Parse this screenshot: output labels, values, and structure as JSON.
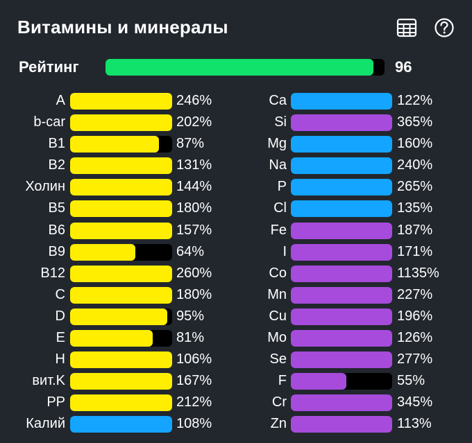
{
  "header": {
    "title": "Витамины и минералы",
    "icons": [
      "table-icon",
      "help-icon"
    ]
  },
  "rating": {
    "label": "Рейтинг",
    "value": "96",
    "percent": 96,
    "color": "#10e26b"
  },
  "colors": {
    "vitamin": "#ffee00",
    "mineral_blue": "#13a5ff",
    "mineral_purple": "#a64bdb",
    "track": "#000000",
    "background": "#22272e"
  },
  "vitamins": [
    {
      "name": "A",
      "pct": "246%",
      "value": 246,
      "color": "#ffee00"
    },
    {
      "name": "b-car",
      "pct": "202%",
      "value": 202,
      "color": "#ffee00"
    },
    {
      "name": "B1",
      "pct": "87%",
      "value": 87,
      "color": "#ffee00"
    },
    {
      "name": "B2",
      "pct": "131%",
      "value": 131,
      "color": "#ffee00"
    },
    {
      "name": "Холин",
      "pct": "144%",
      "value": 144,
      "color": "#ffee00"
    },
    {
      "name": "B5",
      "pct": "180%",
      "value": 180,
      "color": "#ffee00"
    },
    {
      "name": "B6",
      "pct": "157%",
      "value": 157,
      "color": "#ffee00"
    },
    {
      "name": "B9",
      "pct": "64%",
      "value": 64,
      "color": "#ffee00"
    },
    {
      "name": "B12",
      "pct": "260%",
      "value": 260,
      "color": "#ffee00"
    },
    {
      "name": "C",
      "pct": "180%",
      "value": 180,
      "color": "#ffee00"
    },
    {
      "name": "D",
      "pct": "95%",
      "value": 95,
      "color": "#ffee00"
    },
    {
      "name": "E",
      "pct": "81%",
      "value": 81,
      "color": "#ffee00"
    },
    {
      "name": "H",
      "pct": "106%",
      "value": 106,
      "color": "#ffee00"
    },
    {
      "name": "вит.K",
      "pct": "167%",
      "value": 167,
      "color": "#ffee00"
    },
    {
      "name": "PP",
      "pct": "212%",
      "value": 212,
      "color": "#ffee00"
    },
    {
      "name": "Калий",
      "pct": "108%",
      "value": 108,
      "color": "#13a5ff"
    }
  ],
  "minerals": [
    {
      "name": "Ca",
      "pct": "122%",
      "value": 122,
      "color": "#13a5ff"
    },
    {
      "name": "Si",
      "pct": "365%",
      "value": 365,
      "color": "#a64bdb"
    },
    {
      "name": "Mg",
      "pct": "160%",
      "value": 160,
      "color": "#13a5ff"
    },
    {
      "name": "Na",
      "pct": "240%",
      "value": 240,
      "color": "#13a5ff"
    },
    {
      "name": "P",
      "pct": "265%",
      "value": 265,
      "color": "#13a5ff"
    },
    {
      "name": "Cl",
      "pct": "135%",
      "value": 135,
      "color": "#13a5ff"
    },
    {
      "name": "Fe",
      "pct": "187%",
      "value": 187,
      "color": "#a64bdb"
    },
    {
      "name": "I",
      "pct": "171%",
      "value": 171,
      "color": "#a64bdb"
    },
    {
      "name": "Co",
      "pct": "1135%",
      "value": 1135,
      "color": "#a64bdb"
    },
    {
      "name": "Mn",
      "pct": "227%",
      "value": 227,
      "color": "#a64bdb"
    },
    {
      "name": "Cu",
      "pct": "196%",
      "value": 196,
      "color": "#a64bdb"
    },
    {
      "name": "Mo",
      "pct": "126%",
      "value": 126,
      "color": "#a64bdb"
    },
    {
      "name": "Se",
      "pct": "277%",
      "value": 277,
      "color": "#a64bdb"
    },
    {
      "name": "F",
      "pct": "55%",
      "value": 55,
      "color": "#a64bdb"
    },
    {
      "name": "Cr",
      "pct": "345%",
      "value": 345,
      "color": "#a64bdb"
    },
    {
      "name": "Zn",
      "pct": "113%",
      "value": 113,
      "color": "#a64bdb"
    }
  ]
}
